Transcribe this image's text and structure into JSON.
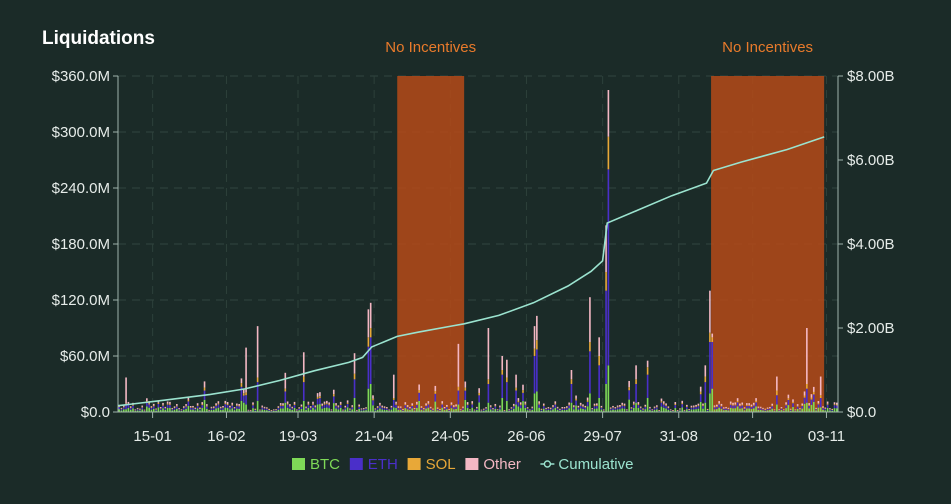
{
  "chart_data": {
    "type": "bar",
    "title": "Liquidations",
    "left_axis": {
      "ticks": [
        "$0.0",
        "$60.0M",
        "$120.0M",
        "$180.0M",
        "$240.0M",
        "$300.0M",
        "$360.0M"
      ],
      "ylim": [
        0,
        360
      ]
    },
    "right_axis": {
      "ticks": [
        "$0.0",
        "$2.00B",
        "$4.00B",
        "$6.00B",
        "$8.00B"
      ],
      "ylim": [
        0,
        8
      ]
    },
    "x_ticks": [
      {
        "label": "15-01",
        "day": 15
      },
      {
        "label": "16-02",
        "day": 47
      },
      {
        "label": "19-03",
        "day": 78
      },
      {
        "label": "21-04",
        "day": 111
      },
      {
        "label": "24-05",
        "day": 144
      },
      {
        "label": "26-06",
        "day": 177
      },
      {
        "label": "29-07",
        "day": 210
      },
      {
        "label": "31-08",
        "day": 243
      },
      {
        "label": "02-10",
        "day": 275
      },
      {
        "label": "03-11",
        "day": 307
      }
    ],
    "x_range_days": [
      0,
      312
    ],
    "bands": [
      {
        "label": "No Incentives",
        "start_day": 121,
        "end_day": 150
      },
      {
        "label": "No Incentives",
        "start_day": 257,
        "end_day": 306
      }
    ],
    "legend": [
      {
        "name": "BTC",
        "color": "#7ed957",
        "marker": "square"
      },
      {
        "name": "ETH",
        "color": "#4a2fc9",
        "marker": "square"
      },
      {
        "name": "SOL",
        "color": "#e8a838",
        "marker": "square"
      },
      {
        "name": "Other",
        "color": "#f3b7c3",
        "marker": "square"
      },
      {
        "name": "Cumulative",
        "color": "#9be3cf",
        "marker": "line"
      }
    ],
    "stack_order": [
      "BTC",
      "ETH",
      "SOL",
      "Other"
    ],
    "spikes": [
      {
        "day": 3,
        "BTC": 3,
        "ETH": 5,
        "SOL": 1,
        "Other": 28
      },
      {
        "day": 53,
        "BTC": 12,
        "ETH": 15,
        "SOL": 4,
        "Other": 5
      },
      {
        "day": 55,
        "BTC": 8,
        "ETH": 10,
        "SOL": 3,
        "Other": 48
      },
      {
        "day": 60,
        "BTC": 12,
        "ETH": 20,
        "SOL": 5,
        "Other": 55
      },
      {
        "day": 72,
        "BTC": 10,
        "ETH": 12,
        "SOL": 3,
        "Other": 17
      },
      {
        "day": 80,
        "BTC": 12,
        "ETH": 20,
        "SOL": 6,
        "Other": 26
      },
      {
        "day": 102,
        "BTC": 15,
        "ETH": 20,
        "SOL": 6,
        "Other": 22
      },
      {
        "day": 108,
        "BTC": 25,
        "ETH": 45,
        "SOL": 10,
        "Other": 30
      },
      {
        "day": 109,
        "BTC": 30,
        "ETH": 50,
        "SOL": 10,
        "Other": 27
      },
      {
        "day": 119,
        "BTC": 5,
        "ETH": 8,
        "SOL": 2,
        "Other": 25
      },
      {
        "day": 147,
        "BTC": 8,
        "ETH": 15,
        "SOL": 4,
        "Other": 46
      },
      {
        "day": 160,
        "BTC": 10,
        "ETH": 20,
        "SOL": 5,
        "Other": 55
      },
      {
        "day": 166,
        "BTC": 15,
        "ETH": 25,
        "SOL": 5,
        "Other": 15
      },
      {
        "day": 168,
        "BTC": 12,
        "ETH": 20,
        "SOL": 5,
        "Other": 19
      },
      {
        "day": 172,
        "BTC": 8,
        "ETH": 15,
        "SOL": 3,
        "Other": 14
      },
      {
        "day": 180,
        "BTC": 20,
        "ETH": 40,
        "SOL": 8,
        "Other": 24
      },
      {
        "day": 181,
        "BTC": 22,
        "ETH": 45,
        "SOL": 10,
        "Other": 26
      },
      {
        "day": 196,
        "BTC": 10,
        "ETH": 20,
        "SOL": 5,
        "Other": 10
      },
      {
        "day": 204,
        "BTC": 20,
        "ETH": 45,
        "SOL": 10,
        "Other": 48
      },
      {
        "day": 208,
        "BTC": 15,
        "ETH": 35,
        "SOL": 10,
        "Other": 20
      },
      {
        "day": 211,
        "BTC": 30,
        "ETH": 100,
        "SOL": 20,
        "Other": 50
      },
      {
        "day": 212,
        "BTC": 50,
        "ETH": 210,
        "SOL": 35,
        "Other": 50
      },
      {
        "day": 224,
        "BTC": 10,
        "ETH": 20,
        "SOL": 5,
        "Other": 15
      },
      {
        "day": 229,
        "BTC": 15,
        "ETH": 25,
        "SOL": 8,
        "Other": 7
      },
      {
        "day": 254,
        "BTC": 10,
        "ETH": 22,
        "SOL": 6,
        "Other": 12
      },
      {
        "day": 256,
        "BTC": 20,
        "ETH": 55,
        "SOL": 10,
        "Other": 45
      },
      {
        "day": 257,
        "BTC": 25,
        "ETH": 50,
        "SOL": 5,
        "Other": 4
      },
      {
        "day": 285,
        "BTC": 8,
        "ETH": 10,
        "SOL": 5,
        "Other": 15
      },
      {
        "day": 298,
        "BTC": 10,
        "ETH": 15,
        "SOL": 5,
        "Other": 60
      },
      {
        "day": 304,
        "BTC": 5,
        "ETH": 10,
        "SOL": 3,
        "Other": 20
      }
    ],
    "cumulative_points": [
      [
        0,
        0.15
      ],
      [
        20,
        0.28
      ],
      [
        40,
        0.42
      ],
      [
        55,
        0.55
      ],
      [
        70,
        0.75
      ],
      [
        85,
        0.98
      ],
      [
        100,
        1.18
      ],
      [
        106,
        1.3
      ],
      [
        110,
        1.55
      ],
      [
        121,
        1.8
      ],
      [
        130,
        1.9
      ],
      [
        145,
        2.05
      ],
      [
        150,
        2.1
      ],
      [
        165,
        2.3
      ],
      [
        180,
        2.6
      ],
      [
        195,
        3.0
      ],
      [
        205,
        3.35
      ],
      [
        210,
        3.6
      ],
      [
        212,
        4.5
      ],
      [
        225,
        4.8
      ],
      [
        240,
        5.15
      ],
      [
        255,
        5.45
      ],
      [
        258,
        5.75
      ],
      [
        270,
        5.95
      ],
      [
        290,
        6.25
      ],
      [
        306,
        6.55
      ]
    ]
  }
}
